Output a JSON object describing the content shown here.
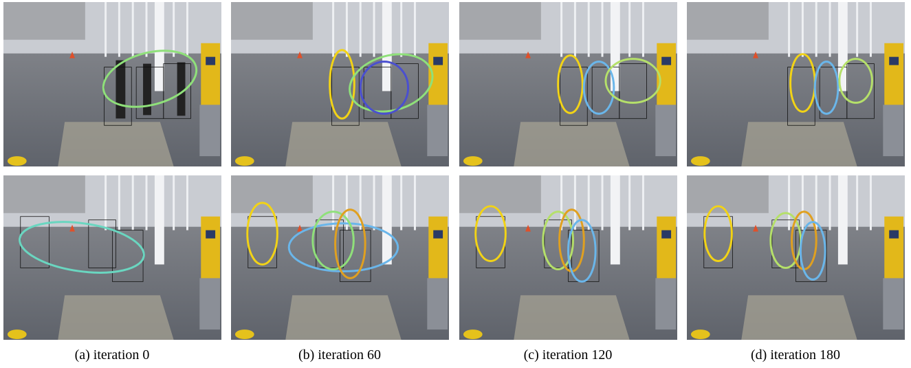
{
  "captions": [
    "(a) iteration 0",
    "(b) iteration 60",
    "(c) iteration 120",
    "(d) iteration 180"
  ]
}
